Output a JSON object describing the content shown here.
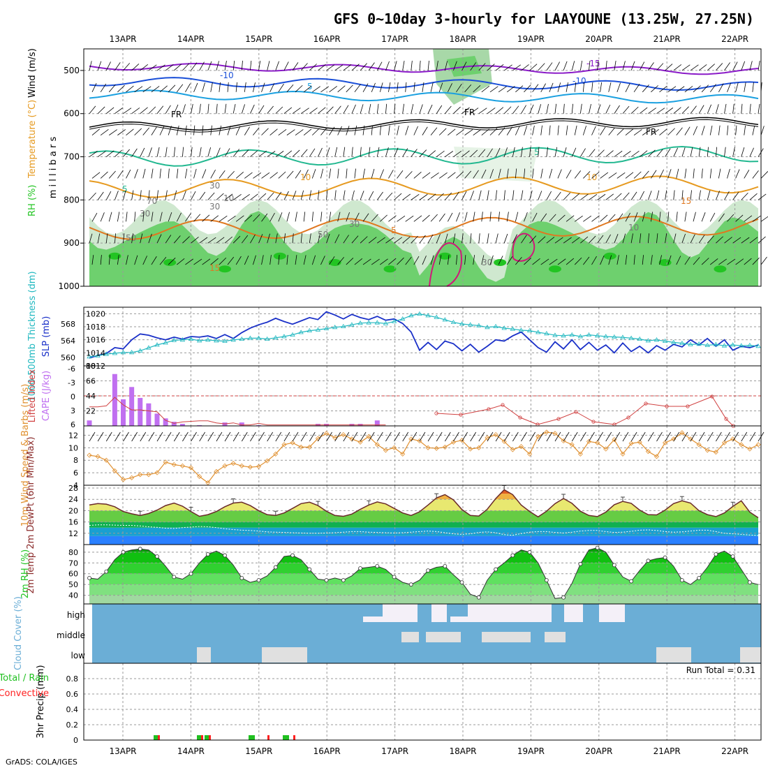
{
  "title": "GFS 0~10day 3-hourly for LAAYOUNE (13.25W, 27.25N)",
  "footer": "GrADS: COLA/IGES",
  "colors": {
    "rh_green": "#6ed06e",
    "rh_dark": "#22c422",
    "temp_orange": "#e69a20",
    "temp_blue": "#1a4fd8",
    "temp_cyan": "#1aa0e0",
    "temp_purple": "#8a1ac8",
    "temp_teal": "#22b890",
    "temp_magenta": "#d0187a",
    "slp_blue": "#1a30c8",
    "thick_cyan": "#20b8c0",
    "li_red": "#d04040",
    "cape_purple": "#c070f0",
    "wind_orange": "#e09030",
    "cloud_blue": "#6baed6",
    "cloud_white": "#f4f0f8",
    "rain_green": "#20c020",
    "rain_red": "#ff2020"
  },
  "chart_data": [
    {
      "type": "contour",
      "panel": "upper-air",
      "ylabel": "m i l l i b a r s",
      "side_labels": [
        "RH (%)",
        "Temperature (°C)",
        "Wind (m/s)"
      ],
      "y_ticks": [
        500,
        600,
        700,
        800,
        900,
        1000
      ],
      "date_labels": [
        "13APR",
        "14APR",
        "15APR",
        "16APR",
        "17APR",
        "18APR",
        "19APR",
        "20APR",
        "21APR",
        "22APR"
      ],
      "contour_labels": [
        "-15",
        "-10",
        "-10",
        "5",
        "FR",
        "FR",
        "FR",
        "5",
        "5",
        "10",
        "10",
        "15",
        "15",
        "5",
        "30",
        "30",
        "30",
        "50",
        "50",
        "70",
        "30",
        "10",
        "10",
        "30"
      ]
    },
    {
      "type": "line",
      "panel": "slp-thickness",
      "ylabel_left": "1000-500mb Thickness (dm)",
      "ylabel_right": "SLP (mb)",
      "thickness_ticks": [
        560,
        564,
        568
      ],
      "slp_ticks": [
        1012,
        1014,
        1016,
        1018,
        1020
      ],
      "slp": [
        1013.2,
        1013.6,
        1013.9,
        1014.8,
        1014.6,
        1016.0,
        1016.9,
        1016.7,
        1016.3,
        1016.0,
        1016.4,
        1016.1,
        1016.5,
        1016.4,
        1016.6,
        1016.2,
        1016.8,
        1016.2,
        1017.1,
        1017.8,
        1018.3,
        1018.7,
        1019.3,
        1018.8,
        1018.4,
        1018.9,
        1019.4,
        1019.1,
        1020.3,
        1019.8,
        1019.2,
        1019.9,
        1019.4,
        1019.1,
        1019.6,
        1019.0,
        1019.2,
        1018.5,
        1017.2,
        1014.4,
        1015.6,
        1014.5,
        1015.8,
        1015.4,
        1014.3,
        1015.3,
        1014.1,
        1015.0,
        1016.0,
        1015.8,
        1016.6,
        1017.2,
        1016.0,
        1014.8,
        1014.1,
        1015.7,
        1014.6,
        1016.0,
        1014.5,
        1015.6,
        1014.4,
        1015.2,
        1014.0,
        1015.5,
        1014.2,
        1015.0,
        1014.0,
        1015.1,
        1014.4,
        1015.3,
        1014.9,
        1016.0,
        1015.2,
        1016.2,
        1015.0,
        1016.0,
        1014.4,
        1015.0,
        1014.8,
        1015.2
      ],
      "thickness": [
        560.2,
        560.4,
        560.8,
        561.0,
        561.2,
        561.2,
        561.6,
        562.3,
        563.0,
        563.5,
        564.1,
        564.2,
        564.4,
        564.0,
        564.2,
        564.0,
        563.9,
        564.2,
        564.4,
        564.6,
        564.6,
        564.4,
        564.7,
        565.0,
        565.4,
        566.0,
        566.4,
        566.6,
        566.9,
        567.2,
        567.4,
        567.8,
        568.2,
        568.3,
        568.3,
        568.1,
        568.6,
        569.2,
        570.0,
        570.4,
        570.0,
        569.6,
        569.0,
        568.4,
        568.0,
        567.8,
        567.6,
        567.2,
        567.4,
        567.0,
        566.8,
        566.5,
        566.4,
        566.0,
        565.7,
        565.3,
        565.2,
        565.4,
        565.0,
        565.4,
        565.2,
        565.0,
        564.9,
        564.8,
        564.6,
        564.4,
        564.0,
        564.2,
        563.9,
        563.6,
        563.4,
        563.1,
        563.2,
        562.9,
        563.1,
        562.8,
        563.0,
        562.8,
        562.9,
        562.7
      ]
    },
    {
      "type": "bar",
      "panel": "cape-li",
      "ylabel_left": "Lifted Index",
      "ylabel_right": "CAPE (J/kg)",
      "li_ticks": [
        "-6",
        "-3",
        "0",
        "3",
        "6"
      ],
      "cape_ticks": [
        22,
        44,
        66,
        88
      ],
      "cape": [
        8,
        0,
        0,
        76,
        39,
        57,
        41,
        33,
        18,
        11,
        6,
        3,
        0,
        1,
        0,
        0,
        5,
        0,
        5,
        0,
        1,
        0,
        0,
        0,
        0,
        0,
        0,
        3,
        3,
        0,
        0,
        3,
        3,
        0,
        8,
        0,
        0,
        0,
        0,
        0,
        0,
        0,
        0,
        0,
        0,
        0,
        0,
        0,
        0,
        0,
        0,
        0,
        0,
        0,
        0,
        0,
        0,
        0,
        0,
        0,
        0,
        0,
        0,
        0,
        0,
        0,
        0,
        0,
        0,
        0,
        0,
        0,
        0,
        0,
        0,
        0,
        0,
        0,
        0,
        0
      ],
      "lifted_index": [
        2.2,
        2.2,
        2.0,
        0.3,
        1.8,
        2.8,
        2.8,
        3.0,
        3.2,
        4.9,
        5.5,
        5.2,
        5.1,
        5.0,
        5.0,
        5.4,
        5.6,
        5.4,
        5.8,
        5.8,
        5.5,
        5.8,
        5.8,
        5.8,
        5.8,
        5.8,
        5.8,
        5.8,
        5.8,
        5.8,
        5.8,
        5.8,
        5.8,
        5.8,
        5.8,
        5.8,
        null,
        null,
        null,
        null,
        null,
        null,
        null,
        null,
        null,
        null,
        null,
        null,
        null,
        null,
        null,
        null,
        null,
        null,
        null,
        null,
        null,
        null,
        null,
        null,
        null,
        null,
        null,
        null,
        null,
        null,
        null,
        null,
        null,
        null,
        null,
        null,
        null,
        null,
        null,
        null,
        null,
        null,
        null,
        null
      ]
    },
    {
      "type": "line",
      "panel": "wind10m",
      "ylabel": "10m Wind Speed & Barbs (m/s)",
      "y_ticks": [
        4,
        6,
        8,
        10,
        12
      ],
      "speed": [
        8.8,
        8.6,
        8.0,
        6.3,
        4.9,
        5.2,
        5.7,
        5.7,
        6.0,
        7.7,
        7.3,
        7.1,
        6.8,
        5.4,
        4.4,
        6.2,
        7.1,
        7.5,
        7.1,
        6.9,
        7.0,
        7.9,
        9.0,
        10.5,
        10.8,
        10.1,
        10.1,
        11.5,
        12.3,
        11.6,
        12.1,
        11.4,
        10.9,
        11.8,
        10.5,
        9.6,
        10.0,
        9.0,
        11.4,
        11.1,
        10.0,
        9.9,
        10.1,
        10.9,
        11.2,
        9.8,
        10.0,
        11.6,
        12.1,
        11.0,
        9.7,
        10.2,
        9.0,
        11.8,
        12.5,
        12.3,
        11.1,
        10.5,
        9.0,
        11.0,
        10.8,
        9.8,
        11.3,
        9.0,
        10.7,
        10.9,
        9.4,
        8.6,
        10.8,
        11.4,
        12.4,
        11.4,
        10.5,
        9.6,
        9.3,
        10.8,
        11.4,
        10.5,
        9.8,
        10.5
      ]
    },
    {
      "type": "area",
      "panel": "temp2m",
      "ylabel": "2m Temp 2m DewPt (6hr Min/Max)",
      "y_ticks": [
        12,
        16,
        20,
        24,
        28
      ],
      "temp": [
        22.0,
        22.5,
        22.3,
        21.4,
        19.7,
        18.9,
        18.3,
        19.0,
        20.2,
        21.8,
        22.7,
        21.6,
        19.7,
        18.0,
        18.6,
        19.7,
        21.4,
        22.7,
        23.0,
        21.8,
        20.0,
        18.6,
        18.3,
        19.2,
        20.8,
        22.5,
        23.0,
        21.8,
        19.8,
        18.3,
        18.0,
        18.8,
        20.5,
        22.0,
        23.1,
        22.4,
        20.8,
        19.2,
        18.3,
        19.6,
        22.0,
        24.5,
        25.7,
        23.8,
        20.4,
        18.3,
        18.1,
        20.5,
        24.3,
        27.4,
        25.7,
        22.0,
        19.7,
        17.8,
        19.8,
        22.5,
        24.3,
        22.6,
        19.8,
        18.3,
        17.9,
        19.5,
        22.1,
        23.3,
        22.6,
        20.2,
        18.6,
        18.5,
        20.2,
        22.5,
        23.5,
        22.7,
        20.0,
        18.6,
        17.9,
        19.2,
        21.5,
        23.5,
        19.5,
        17.5
      ],
      "dewpt": [
        14.8,
        15.0,
        15.0,
        14.9,
        14.8,
        14.8,
        14.6,
        14.3,
        14.1,
        13.8,
        13.7,
        14.0,
        14.2,
        14.4,
        14.3,
        14.0,
        13.6,
        13.3,
        13.1,
        13.0,
        12.8,
        12.5,
        12.4,
        12.3,
        12.2,
        12.1,
        12.0,
        12.0,
        12.1,
        12.2,
        12.4,
        12.6,
        12.6,
        12.4,
        12.3,
        12.2,
        12.1,
        12.2,
        12.4,
        12.6,
        12.8,
        12.6,
        12.2,
        11.8,
        11.6,
        11.8,
        12.3,
        12.5,
        12.2,
        11.5,
        11.3,
        11.9,
        12.4,
        12.6,
        12.6,
        12.3,
        12.1,
        12.4,
        12.8,
        13.0,
        13.0,
        12.6,
        12.3,
        12.4,
        12.7,
        13.1,
        13.2,
        13.0,
        12.6,
        12.4,
        12.5,
        12.8,
        13.1,
        13.1,
        12.6,
        12.0,
        11.8,
        11.6,
        11.4,
        11.2
      ]
    },
    {
      "type": "area",
      "panel": "rh2m",
      "ylabel": "2m RH (%)",
      "y_ticks": [
        40,
        50,
        60,
        70,
        80
      ],
      "rh": [
        56,
        55,
        62,
        73,
        80,
        82,
        83,
        82,
        76,
        67,
        57,
        55,
        60,
        70,
        78,
        81,
        77,
        68,
        56,
        52,
        54,
        58,
        66,
        76,
        77,
        73,
        64,
        55,
        54,
        56,
        54,
        58,
        65,
        66,
        67,
        64,
        57,
        52,
        50,
        54,
        63,
        66,
        67,
        59,
        52,
        41,
        38,
        54,
        64,
        70,
        77,
        82,
        80,
        70,
        54,
        37,
        38,
        51,
        69,
        82,
        84,
        80,
        68,
        57,
        53,
        63,
        72,
        74,
        75,
        67,
        54,
        50,
        56,
        66,
        78,
        81,
        76,
        64,
        52,
        50
      ]
    },
    {
      "type": "heatmap",
      "panel": "cloud",
      "ylabel": "Cloud Cover (%)",
      "levels": [
        "high",
        "middle",
        "low"
      ]
    },
    {
      "type": "bar",
      "panel": "precip",
      "ylabel": "3hr Precip (mm)",
      "side_labels": [
        "Total / Rain",
        "Convective"
      ],
      "y_ticks": [
        "0",
        "0.2",
        "0.4",
        "0.6",
        "0.8"
      ],
      "run_total": "Run Total = 0.31"
    }
  ]
}
